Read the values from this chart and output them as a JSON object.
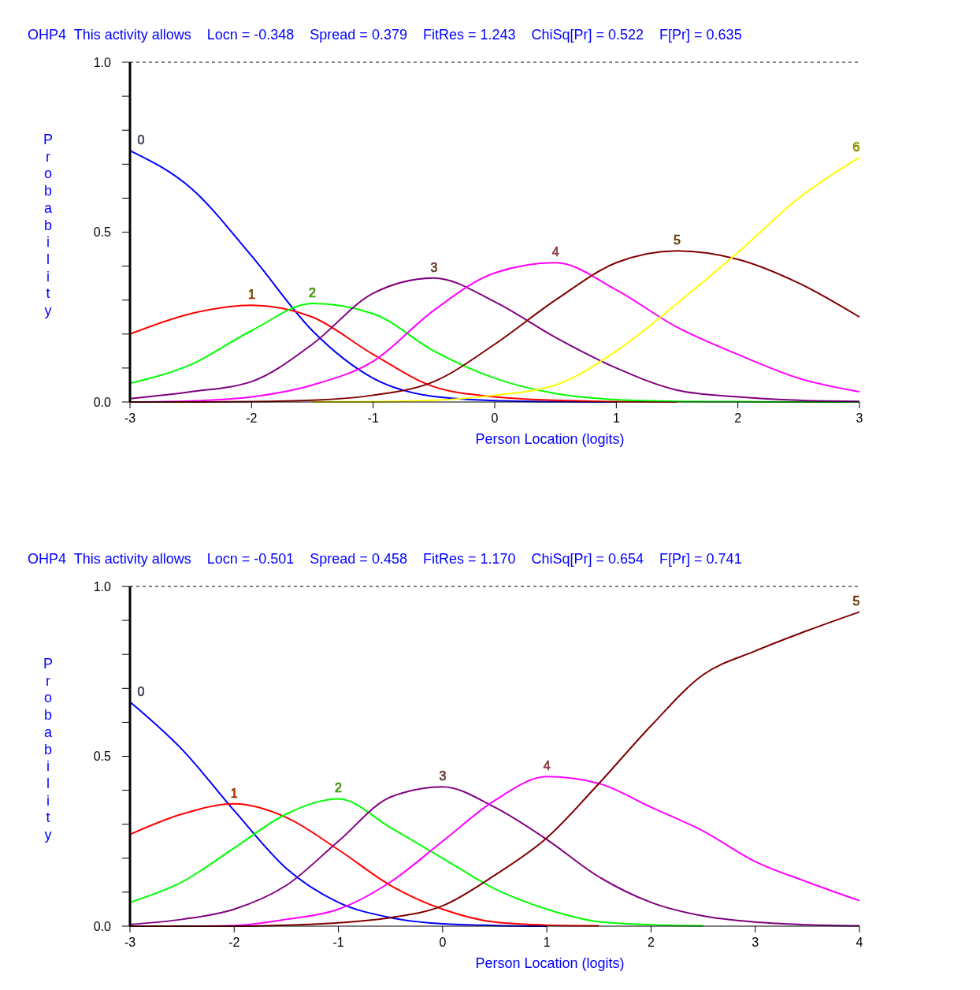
{
  "chart_data": [
    {
      "type": "line",
      "title": "OHP4  This activity allows    Locn = -0.348    Spread = 0.379    FitRes = 1.243    ChiSq[Pr] = 0.522    F[Pr] = 0.635",
      "xlabel": "Person Location (logits)",
      "ylabel": "Probability",
      "x": [
        -3,
        -2.5,
        -2,
        -1.5,
        -1,
        -0.5,
        0,
        0.5,
        1,
        1.5,
        2,
        2.5,
        3
      ],
      "series": [
        {
          "name": "0",
          "color": "#0000ff",
          "values": [
            0.74,
            0.63,
            0.43,
            0.21,
            0.07,
            0.016,
            0.004,
            0.001,
            0,
            null,
            null,
            null,
            null
          ]
        },
        {
          "name": "1",
          "color": "#ff0000",
          "values": [
            0.2,
            0.26,
            0.285,
            0.25,
            0.14,
            0.045,
            0.015,
            0.005,
            0.001,
            0,
            null,
            null,
            null
          ]
        },
        {
          "name": "2",
          "color": "#00ff00",
          "values": [
            0.055,
            0.11,
            0.21,
            0.29,
            0.26,
            0.15,
            0.07,
            0.025,
            0.007,
            0.002,
            0.001,
            0,
            0
          ]
        },
        {
          "name": "3",
          "color": "#800080",
          "values": [
            0.01,
            0.03,
            0.06,
            0.17,
            0.32,
            0.365,
            0.295,
            0.19,
            0.1,
            0.035,
            0.015,
            0.005,
            0.002
          ]
        },
        {
          "name": "4",
          "color": "#ff00ff",
          "values": [
            0,
            0.003,
            0.015,
            0.05,
            0.12,
            0.27,
            0.38,
            0.41,
            0.33,
            0.22,
            0.14,
            0.07,
            0.03
          ]
        },
        {
          "name": "5",
          "color": "#800000",
          "values": [
            0,
            0,
            0.001,
            0.005,
            0.02,
            0.06,
            0.17,
            0.3,
            0.41,
            0.445,
            0.42,
            0.35,
            0.25
          ]
        },
        {
          "name": "6",
          "color": "#ffff00",
          "values": [
            null,
            null,
            null,
            0,
            0.001,
            0.005,
            0.02,
            0.05,
            0.15,
            0.29,
            0.44,
            0.6,
            0.72
          ]
        }
      ],
      "xlim": [
        -3,
        3
      ],
      "xticks": [
        -3,
        -2,
        -1,
        0,
        1,
        2,
        3
      ],
      "ylim": [
        0,
        1
      ],
      "yticks": [
        {
          "value": 0,
          "label": "0.0"
        },
        {
          "value": 0.1,
          "label": null
        },
        {
          "value": 0.2,
          "label": null
        },
        {
          "value": 0.3,
          "label": null
        },
        {
          "value": 0.4,
          "label": null
        },
        {
          "value": 0.5,
          "label": "0.5"
        },
        {
          "value": 0.6,
          "label": null
        },
        {
          "value": 0.7,
          "label": null
        },
        {
          "value": 0.8,
          "label": null
        },
        {
          "value": 0.9,
          "label": null
        },
        {
          "value": 1,
          "label": "1.0"
        }
      ],
      "ref_lines": [
        {
          "axis": "y",
          "value": 1,
          "label": null,
          "color": "#000000",
          "line_style": "dashed"
        }
      ],
      "grid": false,
      "legend": false
    },
    {
      "type": "line",
      "title": "OHP4  This activity allows    Locn = -0.501    Spread = 0.458    FitRes = 1.170    ChiSq[Pr] = 0.654    F[Pr] = 0.741",
      "xlabel": "Person Location (logits)",
      "ylabel": "Probability",
      "x": [
        -3,
        -2.5,
        -2,
        -1.5,
        -1,
        -0.5,
        0,
        0.5,
        1,
        1.5,
        2,
        2.5,
        3,
        3.5,
        4
      ],
      "series": [
        {
          "name": "0",
          "color": "#0000ff",
          "values": [
            0.66,
            0.52,
            0.34,
            0.17,
            0.07,
            0.025,
            0.007,
            0.002,
            0,
            null,
            null,
            null,
            null,
            null,
            null
          ]
        },
        {
          "name": "1",
          "color": "#ff0000",
          "values": [
            0.27,
            0.33,
            0.36,
            0.32,
            0.225,
            0.12,
            0.05,
            0.012,
            0.003,
            0.001,
            null,
            null,
            null,
            null,
            null
          ]
        },
        {
          "name": "2",
          "color": "#00ff00",
          "values": [
            0.07,
            0.13,
            0.23,
            0.33,
            0.375,
            0.29,
            0.2,
            0.11,
            0.05,
            0.013,
            0.004,
            0.001,
            null,
            null,
            null
          ]
        },
        {
          "name": "3",
          "color": "#800080",
          "values": [
            0.005,
            0.02,
            0.05,
            0.12,
            0.25,
            0.38,
            0.41,
            0.35,
            0.255,
            0.145,
            0.07,
            0.03,
            0.012,
            0.004,
            0.001
          ]
        },
        {
          "name": "4",
          "color": "#ff00ff",
          "values": [
            0,
            0,
            0.002,
            0.02,
            0.05,
            0.13,
            0.25,
            0.37,
            0.44,
            0.42,
            0.35,
            0.28,
            0.19,
            0.13,
            0.075
          ]
        },
        {
          "name": "5",
          "color": "#800000",
          "values": [
            0,
            0,
            0,
            0.003,
            0.01,
            0.025,
            0.06,
            0.15,
            0.26,
            0.42,
            0.59,
            0.74,
            0.81,
            0.87,
            0.925
          ]
        }
      ],
      "xlim": [
        -3,
        4
      ],
      "xticks": [
        -3,
        -2,
        -1,
        0,
        1,
        2,
        3,
        4
      ],
      "ylim": [
        0,
        1
      ],
      "yticks": [
        {
          "value": 0,
          "label": "0.0"
        },
        {
          "value": 0.1,
          "label": null
        },
        {
          "value": 0.2,
          "label": null
        },
        {
          "value": 0.3,
          "label": null
        },
        {
          "value": 0.4,
          "label": null
        },
        {
          "value": 0.5,
          "label": "0.5"
        },
        {
          "value": 0.6,
          "label": null
        },
        {
          "value": 0.7,
          "label": null
        },
        {
          "value": 0.8,
          "label": null
        },
        {
          "value": 0.9,
          "label": null
        },
        {
          "value": 1,
          "label": "1.0"
        }
      ],
      "ref_lines": [
        {
          "axis": "y",
          "value": 1,
          "label": null,
          "color": "#000000",
          "line_style": "dashed"
        }
      ],
      "grid": false,
      "legend": false
    }
  ]
}
